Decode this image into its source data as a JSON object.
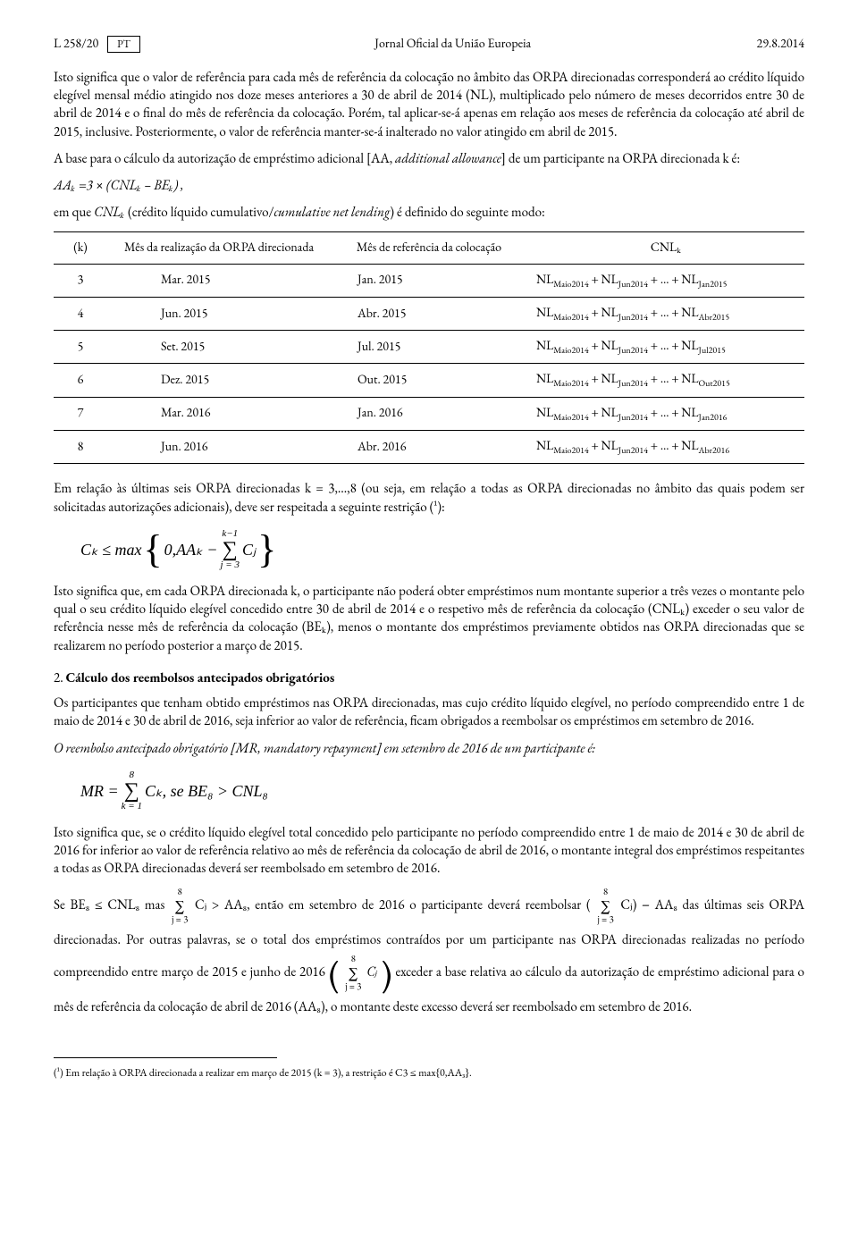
{
  "header": {
    "page": "L 258/20",
    "lang": "PT",
    "title": "Jornal Oficial da União Europeia",
    "date": "29.8.2014"
  },
  "p1": "Isto significa que o valor de referência para cada mês de referência da colocação no âmbito das ORPA direcionadas corresponderá ao crédito líquido elegível mensal médio atingido nos doze meses anteriores a 30 de abril de 2014 (NL), multiplicado pelo número de meses decorridos entre 30 de abril de 2014 e o final do mês de referência da colocação. Porém, tal aplicar-se-á apenas em relação aos meses de referência da colocação até abril de 2015, inclusive. Posteriormente, o valor de referência manter-se-á inalterado no valor atingido em abril de 2015.",
  "p2a": "A base para o cálculo da autorização de empréstimo adicional [AA, ",
  "p2b": "additional allowance",
  "p2c": "] de um participante na ORPA direcionada k é:",
  "f1": "AAₖ =3 × (CNLₖ – BEₖ) ,",
  "p3a": "em que ",
  "p3b": "CNLₖ",
  "p3c": " (crédito líquido cumulativo/",
  "p3d": "cumulative net lending",
  "p3e": ") é definido do seguinte modo:",
  "th_k": "(k)",
  "th_m": "Mês da realização da ORPA direcionada",
  "th_r": "Mês de referência da colocação",
  "th_cnl": "CNLₖ",
  "rows": [
    {
      "k": "3",
      "m": "Mar. 2015",
      "r": "Jan. 2015",
      "cnl": "NLMaio2014 + NLJun2014 + … + NLJan2015"
    },
    {
      "k": "4",
      "m": "Jun. 2015",
      "r": "Abr. 2015",
      "cnl": "NLMaio2014 + NLJun2014 + … + NLAbr2015"
    },
    {
      "k": "5",
      "m": "Set. 2015",
      "r": "Jul. 2015",
      "cnl": "NLMaio2014 + NLJun2014 + … + NLJul2015"
    },
    {
      "k": "6",
      "m": "Dez. 2015",
      "r": "Out. 2015",
      "cnl": "NLMaio2014 + NLJun2014 + … + NLOut2015"
    },
    {
      "k": "7",
      "m": "Mar. 2016",
      "r": "Jan. 2016",
      "cnl": "NLMaio2014 + NLJun2014 + … + NLJan2016"
    },
    {
      "k": "8",
      "m": "Jun. 2016",
      "r": "Abr. 2016",
      "cnl": "NLMaio2014 + NLJun2014 + … + NLAbr2016"
    }
  ],
  "p4a": "Em relação às últimas seis ORPA direcionadas k = 3,…,8 (ou seja, em relação a todas as ORPA direcionadas no âmbito das quais podem ser solicitadas autorizações adicionais), deve ser respeitada a seguinte restrição (",
  "p4b": "¹",
  "p4c": "):",
  "math1_left": "Cₖ ≤ max",
  "math1_inner": "0,AAₖ −",
  "math1_sum_top": "k−1",
  "math1_sum_bot": "j = 3",
  "math1_cj": "Cⱼ",
  "p5": "Isto significa que, em cada ORPA direcionada k, o participante não poderá obter empréstimos num montante superior a três vezes o montante pelo qual o seu crédito líquido elegível concedido entre 30 de abril de 2014 e o respetivo mês de referência da colocação (CNLₖ) exceder o seu valor de referência nesse mês de referência da colocação (BEₖ), menos o montante dos empréstimos previamente obtidos nas ORPA direcionadas que se realizarem no período posterior a março de 2015.",
  "sec2_num": "2. ",
  "sec2_title": "Cálculo dos reembolsos antecipados obrigatórios",
  "p6": "Os participantes que tenham obtido empréstimos nas ORPA direcionadas, mas cujo crédito líquido elegível, no período compreendido entre 1 de maio de 2014 e 30 de abril de 2016, seja inferior ao valor de referência, ficam obrigados a reembolsar os empréstimos em setembro de 2016.",
  "p7": "O reembolso antecipado obrigatório [MR, mandatory repayment] em setembro de 2016 de um participante é:",
  "math2_left": "MR =",
  "math2_top": "8",
  "math2_bot": "k = 1",
  "math2_right": "Cₖ, se BE₈ > CNL₈",
  "p8": "Isto significa que, se o crédito líquido elegível total concedido pelo participante no período compreendido entre 1 de maio de 2014 e 30 de abril de 2016 for inferior ao valor de referência relativo ao mês de referência da colocação de abril de 2016, o montante integral dos empréstimos respeitantes a todas as ORPA direcionadas deverá ser reembolsado em setembro de 2016.",
  "p9_1": "Se BE₈ ≤ CNL₈ mas ",
  "p9_sumtop": "8",
  "p9_sumbot": "j = 3",
  "p9_2": "Cⱼ > AA₈, então em setembro de 2016 o participante deverá reembolsar (",
  "p9_3": "Cⱼ) − AA₈ das",
  "p10_1": "últimas seis ORPA direcionadas. Por outras palavras, se o total dos empréstimos contraídos por um participante nas",
  "p10_2": "ORPA direcionadas realizadas no período compreendido entre março de 2015 e junho de 2016 ",
  "p10_3": " exceder a",
  "p11": "base relativa ao cálculo da autorização de empréstimo adicional para o mês de referência da colocação de abril de 2016 (AA₈), o montante deste excesso deverá ser reembolsado em setembro de 2016.",
  "footnote": "(¹) Em relação à ORPA direcionada a realizar em março de 2015 (k = 3), a restrição é C3 ≤ max{0,AA₃}."
}
